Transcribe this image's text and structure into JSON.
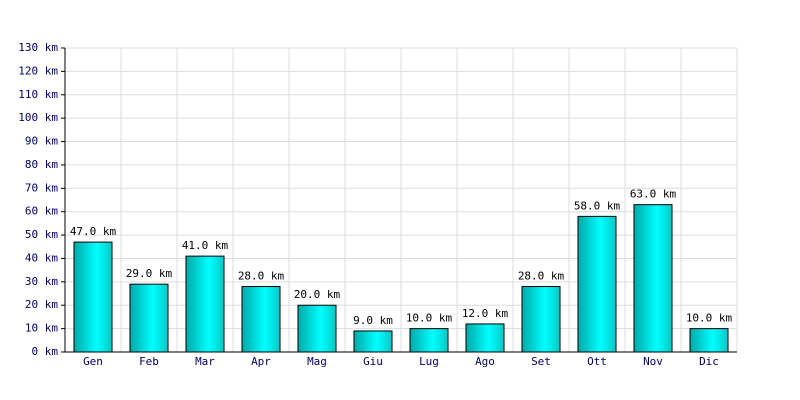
{
  "chart_data": {
    "type": "bar",
    "categories": [
      "Gen",
      "Feb",
      "Mar",
      "Apr",
      "Mag",
      "Giu",
      "Lug",
      "Ago",
      "Set",
      "Ott",
      "Nov",
      "Dic"
    ],
    "values": [
      47,
      29,
      41,
      28,
      20,
      9,
      10,
      12,
      28,
      58,
      63,
      10
    ],
    "value_labels": [
      "47.0 km",
      "29.0 km",
      "41.0 km",
      "28.0 km",
      "20.0 km",
      "9.0 km",
      "10.0 km",
      "12.0 km",
      "28.0 km",
      "58.0 km",
      "63.0 km",
      "10.0 km"
    ],
    "color": "#00d8d8",
    "ylim": [
      0,
      130
    ],
    "yticks": [
      {
        "value": 0,
        "label": "0 km"
      },
      {
        "value": 10,
        "label": "10 km"
      },
      {
        "value": 20,
        "label": "20 km"
      },
      {
        "value": 30,
        "label": "30 km"
      },
      {
        "value": 40,
        "label": "40 km"
      },
      {
        "value": 50,
        "label": "50 km"
      },
      {
        "value": 60,
        "label": "60 km"
      },
      {
        "value": 70,
        "label": "70 km"
      },
      {
        "value": 80,
        "label": "80 km"
      },
      {
        "value": 90,
        "label": "90 km"
      },
      {
        "value": 100,
        "label": "100 km"
      },
      {
        "value": 110,
        "label": "110 km"
      },
      {
        "value": 120,
        "label": "120 km"
      },
      {
        "value": 130,
        "label": "130 km"
      }
    ],
    "grid": true
  }
}
